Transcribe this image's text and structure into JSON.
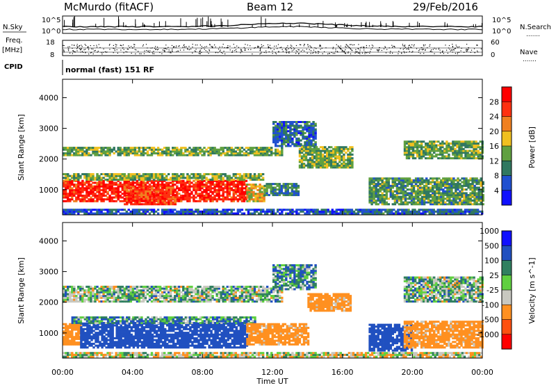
{
  "header": {
    "station": "McMurdo (fitACF)",
    "beam": "Beam 12",
    "date": "29/Feb/2016"
  },
  "left_labels": {
    "nsky": "N.Sky",
    "freq": "Freq.",
    "freq_unit": "[MHz]",
    "cpid": "CPID"
  },
  "right_labels": {
    "nsearch": "N.Search",
    "nave": "Nave",
    "dots": "......."
  },
  "noise_panel": {
    "top_tick": "10^5",
    "bottom_tick": "10^0"
  },
  "freq_panel": {
    "left_ticks": [
      "18",
      "8"
    ],
    "right_ticks": [
      "60",
      "0"
    ]
  },
  "cpid_text": "normal (fast) 151 RF",
  "colors": {
    "power": [
      "#1010ff",
      "#2050d0",
      "#307860",
      "#60a040",
      "#f0c020",
      "#f08020",
      "#ff3010",
      "#ff0000"
    ],
    "velocity": [
      "#ff0000",
      "#ff5010",
      "#ff9020",
      "#c8c8c0",
      "#60d040",
      "#308060",
      "#2050c0",
      "#1010ff"
    ]
  },
  "chart_data": [
    {
      "type": "heatmap",
      "name": "power",
      "ylabel": "Slant Range [km]",
      "yticks": [
        "1000",
        "2000",
        "3000",
        "4000"
      ],
      "ylim": [
        180,
        4600
      ],
      "colorbar_label": "Power [dB]",
      "colorbar_ticks": [
        "4",
        "8",
        "12",
        "16",
        "20",
        "24",
        "28"
      ],
      "colorbar_range": [
        0,
        32
      ],
      "regions": [
        {
          "t0": 0.0,
          "t1": 10.5,
          "r0": 600,
          "r1": 1300,
          "v": 28
        },
        {
          "t0": 3.5,
          "t1": 6.5,
          "r0": 500,
          "r1": 1100,
          "v": 26
        },
        {
          "t0": 0.0,
          "t1": 11.5,
          "r0": 1300,
          "r1": 1500,
          "v": 14
        },
        {
          "t0": 10.5,
          "t1": 11.5,
          "r0": 600,
          "r1": 1200,
          "v": 18
        },
        {
          "t0": 11.5,
          "t1": 13.5,
          "r0": 800,
          "r1": 1200,
          "v": 10
        },
        {
          "t0": 0.0,
          "t1": 12.5,
          "r0": 2100,
          "r1": 2400,
          "v": 14
        },
        {
          "t0": 12.0,
          "t1": 14.5,
          "r0": 2400,
          "r1": 3200,
          "v": 8
        },
        {
          "t0": 13.5,
          "t1": 16.5,
          "r0": 1700,
          "r1": 2400,
          "v": 14
        },
        {
          "t0": 17.5,
          "t1": 24.0,
          "r0": 500,
          "r1": 1400,
          "v": 12
        },
        {
          "t0": 19.5,
          "t1": 24.0,
          "r0": 2000,
          "r1": 2600,
          "v": 13
        },
        {
          "t0": 16.0,
          "t1": 24.0,
          "r0": 200,
          "r1": 350,
          "v": 8
        },
        {
          "t0": 0.0,
          "t1": 16.0,
          "r0": 200,
          "r1": 350,
          "v": 6
        }
      ]
    },
    {
      "type": "heatmap",
      "name": "velocity",
      "ylabel": "Slant Range [km]",
      "yticks": [
        "1000",
        "2000",
        "3000",
        "4000"
      ],
      "ylim": [
        180,
        4600
      ],
      "xlabel": "Time UT",
      "xticks": [
        "00:00",
        "04:00",
        "08:00",
        "12:00",
        "16:00",
        "20:00",
        "00:00"
      ],
      "xlim": [
        0,
        24
      ],
      "colorbar_label": "Velocity [m s^-1]",
      "colorbar_ticks": [
        "-1000",
        "-500",
        "-100",
        "-25",
        "25",
        "100",
        "500",
        "1000"
      ],
      "regions": [
        {
          "t0": 0.0,
          "t1": 1.0,
          "r0": 600,
          "r1": 1300,
          "v": -300
        },
        {
          "t0": 1.0,
          "t1": 10.5,
          "r0": 500,
          "r1": 1300,
          "v": 300
        },
        {
          "t0": 0.5,
          "t1": 11.0,
          "r0": 1300,
          "r1": 1500,
          "v": 60
        },
        {
          "t0": 10.5,
          "t1": 14.0,
          "r0": 600,
          "r1": 1300,
          "v": -200
        },
        {
          "t0": 0.0,
          "t1": 12.5,
          "r0": 2000,
          "r1": 2500,
          "v": 0
        },
        {
          "t0": 12.0,
          "t1": 14.5,
          "r0": 2400,
          "r1": 3200,
          "v": 60
        },
        {
          "t0": 14.0,
          "t1": 16.5,
          "r0": 1700,
          "r1": 2300,
          "v": -200
        },
        {
          "t0": 17.5,
          "t1": 20.0,
          "r0": 400,
          "r1": 1300,
          "v": 300
        },
        {
          "t0": 19.5,
          "t1": 24.0,
          "r0": 500,
          "r1": 1400,
          "v": -200
        },
        {
          "t0": 19.5,
          "t1": 24.0,
          "r0": 2000,
          "r1": 2800,
          "v": 0
        },
        {
          "t0": 0.0,
          "t1": 24.0,
          "r0": 200,
          "r1": 330,
          "v": -50
        }
      ]
    }
  ]
}
